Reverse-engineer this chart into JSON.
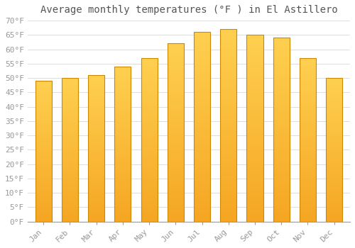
{
  "title": "Average monthly temperatures (°F ) in El Astillero",
  "months": [
    "Jan",
    "Feb",
    "Mar",
    "Apr",
    "May",
    "Jun",
    "Jul",
    "Aug",
    "Sep",
    "Oct",
    "Nov",
    "Dec"
  ],
  "values": [
    49.0,
    50.0,
    51.0,
    54.0,
    57.0,
    62.0,
    66.0,
    67.0,
    65.0,
    64.0,
    57.0,
    50.0
  ],
  "bar_color_bottom": "#F5A623",
  "bar_color_top": "#FFD050",
  "bar_edge_color": "#CC8800",
  "ylim": [
    0,
    70
  ],
  "ytick_step": 5,
  "background_color": "#ffffff",
  "grid_color": "#dddddd",
  "title_fontsize": 10,
  "tick_fontsize": 8,
  "title_color": "#555555",
  "tick_color": "#999999"
}
